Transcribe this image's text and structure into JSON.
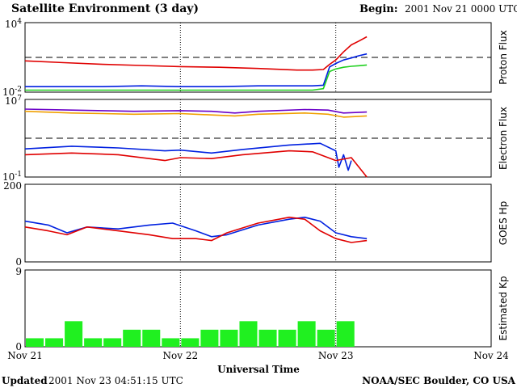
{
  "header": {
    "title": "Satellite Environment (3 day)",
    "begin_label": "Begin:",
    "begin_value": "2001 Nov 21 0000 UTC"
  },
  "footer": {
    "updated_label": "Updated",
    "updated_value": "2001 Nov 23 04:51:15 UTC",
    "credit": "NOAA/SEC Boulder, CO USA"
  },
  "chart_data": [
    {
      "type": "line",
      "panel": "proton",
      "ylabel": "Proton Flux",
      "yscale": "log",
      "ylim": [
        0.01,
        10000
      ],
      "yticks": [
        {
          "base": "10",
          "exp": "4"
        },
        {
          "base": "10",
          "exp": "-2"
        }
      ],
      "threshold": 10,
      "colors": {
        "red": "#e00000",
        "blue": "#0020e0",
        "green": "#20d020"
      },
      "x_days": [
        0,
        0.25,
        0.5,
        0.75,
        1.0,
        1.25,
        1.5,
        1.75,
        1.85,
        1.92,
        1.96,
        2.0,
        2.05,
        2.1,
        2.15,
        2.2
      ],
      "series": [
        {
          "color": "red",
          "values": [
            5,
            3.5,
            2.5,
            2,
            1.6,
            1.4,
            1.1,
            0.8,
            0.8,
            0.9,
            2.5,
            6,
            30,
            120,
            260,
            600
          ]
        },
        {
          "color": "blue",
          "values": [
            0.03,
            0.03,
            0.03,
            0.035,
            0.03,
            0.03,
            0.035,
            0.035,
            0.035,
            0.04,
            1.5,
            3,
            6,
            9,
            14,
            20
          ]
        },
        {
          "color": "green",
          "values": [
            0.015,
            0.015,
            0.015,
            0.015,
            0.015,
            0.015,
            0.015,
            0.015,
            0.015,
            0.02,
            0.6,
            1,
            1.4,
            1.7,
            1.9,
            2.2
          ]
        }
      ]
    },
    {
      "type": "line",
      "panel": "electron",
      "ylabel": "Electron Flux",
      "yscale": "log",
      "ylim": [
        0.1,
        10000000
      ],
      "yticks": [
        {
          "base": "10",
          "exp": "7"
        },
        {
          "base": "10",
          "exp": "-1"
        }
      ],
      "threshold": 1000,
      "colors": {
        "red": "#e00000",
        "blue": "#0020e0",
        "purple": "#6a00c8",
        "orange": "#f0a000"
      },
      "series": [
        {
          "color": "purple",
          "x_days": [
            0,
            0.3,
            0.5,
            0.7,
            1.0,
            1.2,
            1.35,
            1.5,
            1.8,
            1.95,
            2.05,
            2.2
          ],
          "values": [
            1000000,
            800000,
            700000,
            600000,
            700000,
            600000,
            400000,
            600000,
            900000,
            800000,
            400000,
            500000
          ]
        },
        {
          "color": "orange",
          "x_days": [
            0,
            0.3,
            0.5,
            0.7,
            1.0,
            1.2,
            1.35,
            1.5,
            1.8,
            1.95,
            2.05,
            2.2
          ],
          "values": [
            600000,
            400000,
            350000,
            300000,
            350000,
            250000,
            200000,
            300000,
            400000,
            300000,
            150000,
            200000
          ]
        },
        {
          "color": "blue",
          "x_days": [
            0,
            0.3,
            0.6,
            0.9,
            1.0,
            1.2,
            1.4,
            1.7,
            1.9,
            2.0,
            2.02,
            2.05,
            2.08,
            2.1
          ],
          "values": [
            80,
            150,
            100,
            50,
            60,
            30,
            70,
            200,
            300,
            50,
            1,
            20,
            0.5,
            5
          ]
        },
        {
          "color": "red",
          "x_days": [
            0,
            0.3,
            0.6,
            0.9,
            1.0,
            1.2,
            1.4,
            1.7,
            1.85,
            1.95,
            2.0,
            2.1,
            2.2
          ],
          "values": [
            20,
            30,
            20,
            5,
            10,
            8,
            20,
            50,
            40,
            10,
            5,
            10,
            0.1
          ]
        }
      ]
    },
    {
      "type": "line",
      "panel": "hp",
      "ylabel": "GOES Hp",
      "ylim": [
        0,
        200
      ],
      "yticks": [
        "200",
        "0"
      ],
      "colors": {
        "red": "#e00000",
        "blue": "#0020e0"
      },
      "series": [
        {
          "color": "blue",
          "x_days": [
            0,
            0.15,
            0.27,
            0.4,
            0.6,
            0.8,
            0.95,
            1.1,
            1.2,
            1.3,
            1.5,
            1.7,
            1.8,
            1.9,
            2.0,
            2.1,
            2.2
          ],
          "values": [
            105,
            95,
            75,
            90,
            85,
            95,
            100,
            80,
            65,
            70,
            95,
            110,
            115,
            105,
            75,
            65,
            60
          ]
        },
        {
          "color": "red",
          "x_days": [
            0,
            0.15,
            0.27,
            0.4,
            0.6,
            0.8,
            0.95,
            1.1,
            1.2,
            1.3,
            1.5,
            1.7,
            1.8,
            1.9,
            2.0,
            2.1,
            2.2
          ],
          "values": [
            90,
            80,
            70,
            90,
            80,
            70,
            60,
            60,
            55,
            75,
            100,
            115,
            110,
            80,
            60,
            50,
            55
          ]
        }
      ]
    },
    {
      "type": "bar",
      "panel": "kp",
      "ylabel": "Estimated Kp",
      "ylim": [
        0,
        9
      ],
      "yticks": [
        "9",
        "0"
      ],
      "bar_color": "#20f020",
      "x_start_days": [
        0,
        0.125,
        0.25,
        0.375,
        0.5,
        0.625,
        0.75,
        0.875,
        1.0,
        1.125,
        1.25,
        1.375,
        1.5,
        1.625,
        1.75,
        1.875,
        2.0,
        2.125
      ],
      "values": [
        1,
        1,
        3,
        1,
        1,
        2,
        2,
        1,
        1,
        2,
        2,
        3,
        2,
        2,
        3,
        2,
        3,
        0
      ]
    }
  ],
  "x_axis": {
    "xlabel": "Universal Time",
    "tick_labels": [
      "Nov 21",
      "Nov 22",
      "Nov 23",
      "Nov 24"
    ],
    "xlim_days": [
      0,
      3
    ]
  }
}
